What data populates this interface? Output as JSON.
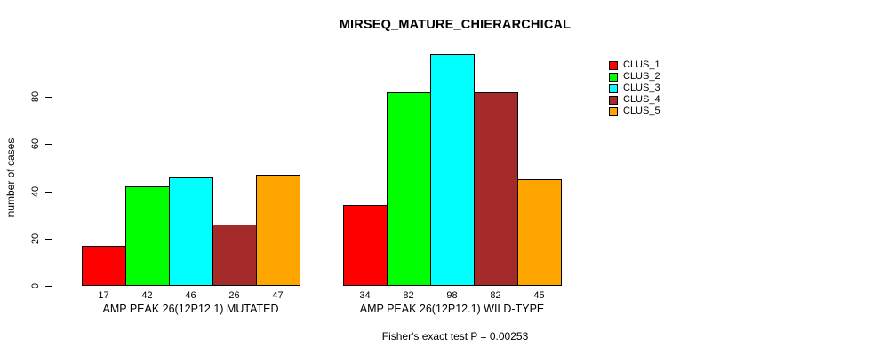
{
  "page": {
    "background": "#ffffff"
  },
  "chart_data": {
    "type": "bar",
    "title": "MIRSEQ_MATURE_CHIERARCHICAL",
    "xlabel": "",
    "ylabel": "number of cases",
    "categories": [
      "AMP PEAK 26(12P12.1) MUTATED",
      "AMP PEAK 26(12P12.1) WILD-TYPE"
    ],
    "series": [
      {
        "name": "CLUS_1",
        "color": "#FF0000",
        "values": [
          17,
          34
        ]
      },
      {
        "name": "CLUS_2",
        "color": "#00FF00",
        "values": [
          42,
          82
        ]
      },
      {
        "name": "CLUS_3",
        "color": "#00FFFF",
        "values": [
          46,
          98
        ]
      },
      {
        "name": "CLUS_4",
        "color": "#A52A2A",
        "values": [
          26,
          82
        ]
      },
      {
        "name": "CLUS_5",
        "color": "#FFA500",
        "values": [
          47,
          45
        ]
      }
    ],
    "bar_value_labels": true,
    "yticks": [
      0,
      20,
      40,
      60,
      80
    ],
    "ylim": [
      0,
      100
    ],
    "grid": false,
    "legend_position": "top-right",
    "bar_border_color": "#000000",
    "annotation": "Fisher's exact test P = 0.00253"
  }
}
